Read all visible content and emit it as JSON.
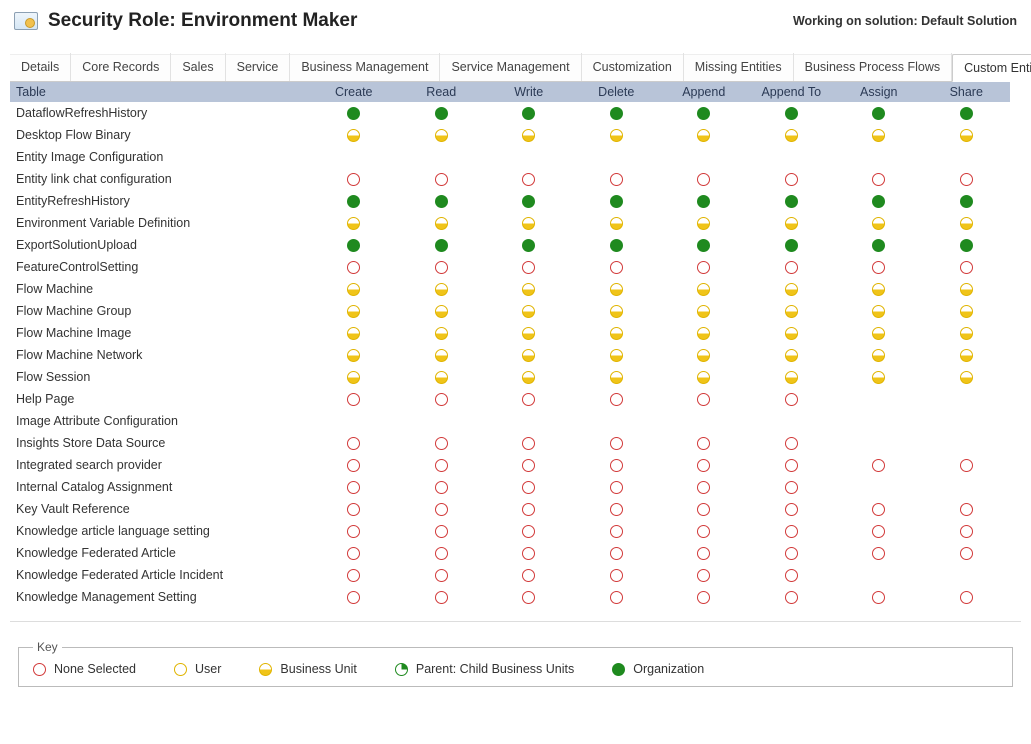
{
  "header": {
    "title": "Security Role: Environment Maker",
    "solution_label": "Working on solution: Default Solution"
  },
  "tabs": [
    {
      "label": "Details",
      "active": false
    },
    {
      "label": "Core Records",
      "active": false
    },
    {
      "label": "Sales",
      "active": false
    },
    {
      "label": "Service",
      "active": false
    },
    {
      "label": "Business Management",
      "active": false
    },
    {
      "label": "Service Management",
      "active": false
    },
    {
      "label": "Customization",
      "active": false
    },
    {
      "label": "Missing Entities",
      "active": false
    },
    {
      "label": "Business Process Flows",
      "active": false
    },
    {
      "label": "Custom Entities",
      "active": true
    }
  ],
  "columns": [
    "Table",
    "Create",
    "Read",
    "Write",
    "Delete",
    "Append",
    "Append To",
    "Assign",
    "Share"
  ],
  "privilege_levels": {
    "none": {
      "label": "None Selected",
      "class": "none"
    },
    "user": {
      "label": "User",
      "class": "user"
    },
    "bu": {
      "label": "Business Unit",
      "class": "bu"
    },
    "parent": {
      "label": "Parent: Child Business Units",
      "class": "parent"
    },
    "org": {
      "label": "Organization",
      "class": "org"
    }
  },
  "rows": [
    {
      "name": "DataflowRefreshHistory",
      "privs": [
        "org",
        "org",
        "org",
        "org",
        "org",
        "org",
        "org",
        "org"
      ]
    },
    {
      "name": "Desktop Flow Binary",
      "privs": [
        "bu",
        "bu",
        "bu",
        "bu",
        "bu",
        "bu",
        "bu",
        "bu"
      ]
    },
    {
      "name": "Entity Image Configuration",
      "privs": [
        null,
        null,
        null,
        null,
        null,
        null,
        null,
        null
      ]
    },
    {
      "name": "Entity link chat configuration",
      "privs": [
        "none",
        "none",
        "none",
        "none",
        "none",
        "none",
        "none",
        "none"
      ]
    },
    {
      "name": "EntityRefreshHistory",
      "privs": [
        "org",
        "org",
        "org",
        "org",
        "org",
        "org",
        "org",
        "org"
      ]
    },
    {
      "name": "Environment Variable Definition",
      "privs": [
        "bu",
        "bu",
        "bu",
        "bu",
        "bu",
        "bu",
        "bu",
        "bu"
      ]
    },
    {
      "name": "ExportSolutionUpload",
      "privs": [
        "org",
        "org",
        "org",
        "org",
        "org",
        "org",
        "org",
        "org"
      ]
    },
    {
      "name": "FeatureControlSetting",
      "privs": [
        "none",
        "none",
        "none",
        "none",
        "none",
        "none",
        "none",
        "none"
      ]
    },
    {
      "name": "Flow Machine",
      "privs": [
        "bu",
        "bu",
        "bu",
        "bu",
        "bu",
        "bu",
        "bu",
        "bu"
      ]
    },
    {
      "name": "Flow Machine Group",
      "privs": [
        "bu",
        "bu",
        "bu",
        "bu",
        "bu",
        "bu",
        "bu",
        "bu"
      ]
    },
    {
      "name": "Flow Machine Image",
      "privs": [
        "bu",
        "bu",
        "bu",
        "bu",
        "bu",
        "bu",
        "bu",
        "bu"
      ]
    },
    {
      "name": "Flow Machine Network",
      "privs": [
        "bu",
        "bu",
        "bu",
        "bu",
        "bu",
        "bu",
        "bu",
        "bu"
      ]
    },
    {
      "name": "Flow Session",
      "privs": [
        "bu",
        "bu",
        "bu",
        "bu",
        "bu",
        "bu",
        "bu",
        "bu"
      ]
    },
    {
      "name": "Help Page",
      "privs": [
        "none",
        "none",
        "none",
        "none",
        "none",
        "none",
        null,
        null
      ]
    },
    {
      "name": "Image Attribute Configuration",
      "privs": [
        null,
        null,
        null,
        null,
        null,
        null,
        null,
        null
      ]
    },
    {
      "name": "Insights Store Data Source",
      "privs": [
        "none",
        "none",
        "none",
        "none",
        "none",
        "none",
        null,
        null
      ]
    },
    {
      "name": "Integrated search provider",
      "privs": [
        "none",
        "none",
        "none",
        "none",
        "none",
        "none",
        "none",
        "none"
      ]
    },
    {
      "name": "Internal Catalog Assignment",
      "privs": [
        "none",
        "none",
        "none",
        "none",
        "none",
        "none",
        null,
        null
      ]
    },
    {
      "name": "Key Vault Reference",
      "privs": [
        "none",
        "none",
        "none",
        "none",
        "none",
        "none",
        "none",
        "none"
      ]
    },
    {
      "name": "Knowledge article language setting",
      "privs": [
        "none",
        "none",
        "none",
        "none",
        "none",
        "none",
        "none",
        "none"
      ]
    },
    {
      "name": "Knowledge Federated Article",
      "privs": [
        "none",
        "none",
        "none",
        "none",
        "none",
        "none",
        "none",
        "none"
      ]
    },
    {
      "name": "Knowledge Federated Article Incident",
      "privs": [
        "none",
        "none",
        "none",
        "none",
        "none",
        "none",
        null,
        null
      ]
    },
    {
      "name": "Knowledge Management Setting",
      "privs": [
        "none",
        "none",
        "none",
        "none",
        "none",
        "none",
        "none",
        "none"
      ]
    }
  ],
  "legend": {
    "title": "Key",
    "items": [
      {
        "level": "none"
      },
      {
        "level": "user"
      },
      {
        "level": "bu"
      },
      {
        "level": "parent"
      },
      {
        "level": "org"
      }
    ]
  },
  "colors": {
    "header_bg": "#b8c4d8",
    "none_border": "#d23a3a",
    "user_border": "#e0b400",
    "bu_fill": "#f0c419",
    "org_fill": "#1f8a1f"
  }
}
